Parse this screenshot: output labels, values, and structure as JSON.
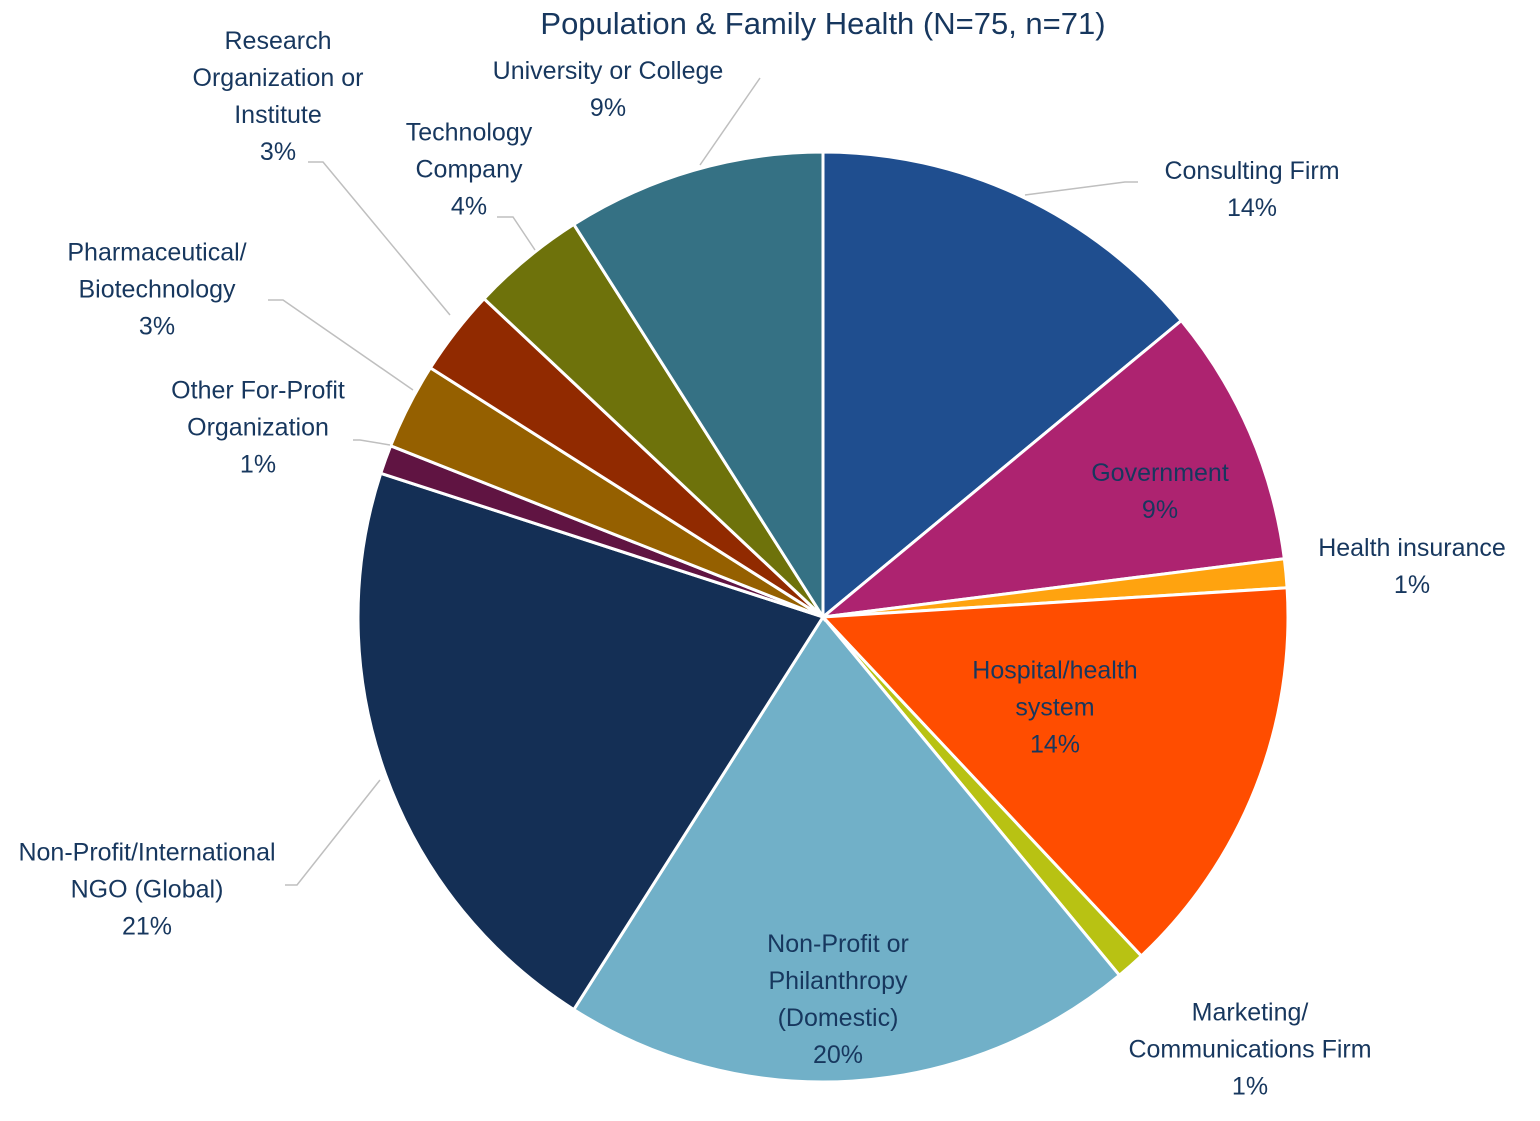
{
  "chart_data": {
    "type": "pie",
    "title": "Population & Family Health (N=75, n=71)",
    "categories": [
      "Consulting Firm",
      "Government",
      "Health insurance",
      "Hospital/health system",
      "Marketing/ Communications Firm",
      "Non-Profit or Philanthropy (Domestic)",
      "Non-Profit/International NGO (Global)",
      "Other For-Profit Organization",
      "Pharmaceutical/ Biotechnology",
      "Research Organization or Institute",
      "Technology Company",
      "University or College"
    ],
    "values": [
      14,
      9,
      1,
      14,
      1,
      20,
      21,
      1,
      3,
      3,
      4,
      9
    ],
    "value_labels": [
      "14%",
      "9%",
      "1%",
      "14%",
      "1%",
      "20%",
      "21%",
      "1%",
      "3%",
      "3%",
      "4%",
      "9%"
    ],
    "colors": [
      "#1f4e8f",
      "#ad2370",
      "#ffa30f",
      "#ff4d00",
      "#b8c213",
      "#71b0c8",
      "#142f55",
      "#601442",
      "#956000",
      "#912a00",
      "#6e720b",
      "#357184"
    ]
  }
}
